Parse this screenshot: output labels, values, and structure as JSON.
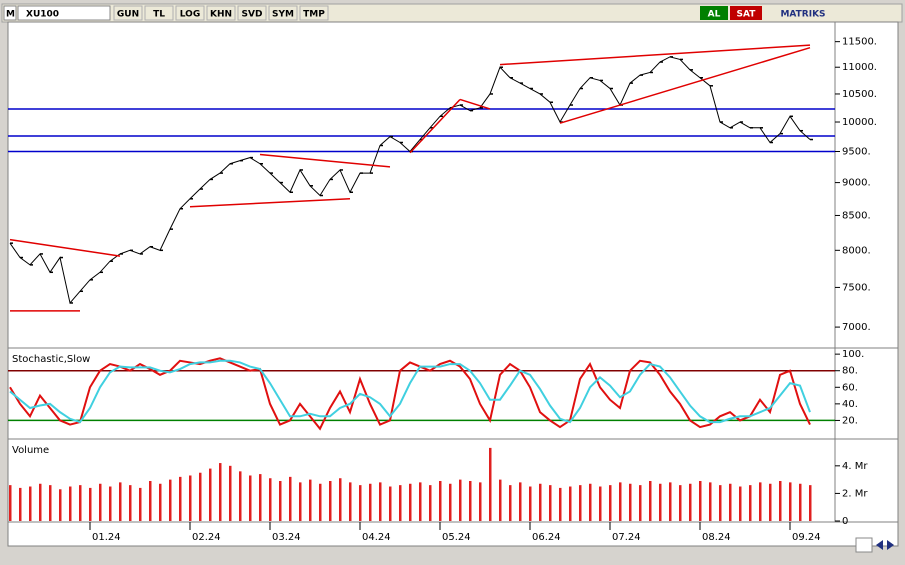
{
  "toolbar": {
    "logo": "M",
    "symbol": "XU100",
    "buttons": [
      "GUN",
      "TL",
      "LOG",
      "KHN",
      "SVD",
      "SYM",
      "TMP"
    ],
    "buy": "AL",
    "sell": "SAT",
    "brand": "MATRIKS"
  },
  "chart_data": [
    {
      "type": "line",
      "log": true,
      "categories": [
        null,
        null,
        null,
        null,
        null,
        null,
        null,
        null,
        "01.24",
        null,
        null,
        null,
        null,
        null,
        null,
        null,
        null,
        null,
        "02.24",
        null,
        null,
        null,
        null,
        null,
        null,
        null,
        "03.24",
        null,
        null,
        null,
        null,
        null,
        null,
        null,
        null,
        "04.24",
        null,
        null,
        null,
        null,
        null,
        null,
        null,
        "05.24",
        null,
        null,
        null,
        null,
        null,
        null,
        null,
        null,
        "06.24",
        null,
        null,
        null,
        null,
        null,
        null,
        null,
        "07.24",
        null,
        null,
        null,
        null,
        null,
        null,
        null,
        null,
        "08.24",
        null,
        null,
        null,
        null,
        null,
        null,
        null,
        null,
        "09.24",
        null,
        null
      ],
      "series": [
        {
          "color": "#000000",
          "values": [
            8100,
            7900,
            7800,
            7950,
            7700,
            7900,
            7300,
            7450,
            7600,
            7700,
            7850,
            7950,
            8000,
            7950,
            8050,
            8000,
            8300,
            8600,
            8750,
            8900,
            9050,
            9150,
            9300,
            9350,
            9400,
            9300,
            9150,
            9000,
            8850,
            9200,
            8950,
            8800,
            9050,
            9200,
            8850,
            9150,
            9150,
            9600,
            9750,
            9650,
            9500,
            9700,
            9900,
            10100,
            10250,
            10300,
            10200,
            10250,
            10500,
            11000,
            10800,
            10700,
            10600,
            10500,
            10350,
            10000,
            10300,
            10600,
            10800,
            10750,
            10600,
            10300,
            10700,
            10850,
            10900,
            11100,
            11200,
            11150,
            10950,
            10800,
            10650,
            10000,
            9900,
            10000,
            9900,
            9900,
            9650,
            9800,
            10100,
            9850,
            9700
          ]
        }
      ],
      "ylim": [
        6750,
        11900
      ],
      "yticks": [
        {
          "value": 7000,
          "label": "7000."
        },
        {
          "value": 7500,
          "label": "7500."
        },
        {
          "value": 8000,
          "label": "8000."
        },
        {
          "value": 8500,
          "label": "8500."
        },
        {
          "value": 9000,
          "label": "9000."
        },
        {
          "value": 9500,
          "label": "9500."
        },
        {
          "value": 10000,
          "label": "10000."
        },
        {
          "value": 10500,
          "label": "10500."
        },
        {
          "value": 11000,
          "label": "11000."
        },
        {
          "value": 11500,
          "label": "11500."
        }
      ],
      "hlines": [
        {
          "value": 10230,
          "color": "#0000cc"
        },
        {
          "value": 9760,
          "color": "#0000cc"
        },
        {
          "value": 9500,
          "color": "#0000cc"
        }
      ],
      "trendlines": [
        {
          "color": "#e00000",
          "points": [
            [
              0,
              8150
            ],
            [
              11,
              7920
            ]
          ]
        },
        {
          "color": "#e00000",
          "points": [
            [
              0,
              7200
            ],
            [
              7,
              7200
            ]
          ]
        },
        {
          "color": "#e00000",
          "points": [
            [
              25,
              9450
            ],
            [
              38,
              9250
            ]
          ]
        },
        {
          "color": "#e00000",
          "points": [
            [
              18,
              8630
            ],
            [
              34,
              8750
            ]
          ]
        },
        {
          "color": "#e00000",
          "points": [
            [
              40,
              9480
            ],
            [
              45,
              10400
            ]
          ]
        },
        {
          "color": "#e00000",
          "points": [
            [
              45,
              10400
            ],
            [
              48,
              10230
            ]
          ]
        },
        {
          "color": "#e00000",
          "points": [
            [
              49,
              11050
            ],
            [
              80,
              11430
            ]
          ]
        },
        {
          "color": "#e00000",
          "points": [
            [
              55,
              9980
            ],
            [
              80,
              11380
            ]
          ]
        }
      ]
    },
    {
      "type": "line",
      "title": "Stochastic,Slow",
      "series": [
        {
          "color": "#e01010",
          "values": [
            60,
            40,
            25,
            50,
            35,
            20,
            15,
            18,
            60,
            80,
            88,
            85,
            80,
            88,
            82,
            75,
            80,
            92,
            90,
            88,
            92,
            95,
            90,
            85,
            80,
            82,
            40,
            15,
            20,
            40,
            25,
            10,
            35,
            55,
            30,
            70,
            40,
            15,
            20,
            80,
            90,
            85,
            80,
            88,
            92,
            85,
            70,
            40,
            20,
            75,
            88,
            80,
            60,
            30,
            20,
            12,
            20,
            70,
            88,
            60,
            45,
            35,
            80,
            92,
            90,
            75,
            55,
            40,
            20,
            12,
            15,
            25,
            30,
            20,
            25,
            45,
            30,
            75,
            80,
            40,
            15
          ]
        },
        {
          "color": "#40d0e0",
          "values": [
            55,
            45,
            35,
            38,
            40,
            30,
            22,
            18,
            35,
            60,
            78,
            85,
            84,
            84,
            84,
            80,
            78,
            82,
            88,
            90,
            90,
            92,
            92,
            90,
            85,
            82,
            65,
            45,
            25,
            25,
            28,
            25,
            25,
            35,
            40,
            52,
            48,
            40,
            25,
            40,
            65,
            85,
            85,
            85,
            88,
            88,
            80,
            65,
            45,
            45,
            62,
            80,
            75,
            58,
            38,
            22,
            18,
            35,
            60,
            72,
            62,
            48,
            55,
            75,
            88,
            85,
            72,
            55,
            38,
            25,
            18,
            18,
            22,
            25,
            25,
            30,
            35,
            50,
            65,
            62,
            30
          ]
        }
      ],
      "ylim": [
        0,
        105
      ],
      "yticks": [
        {
          "value": 100,
          "label": "100."
        },
        {
          "value": 80,
          "label": "80."
        },
        {
          "value": 60,
          "label": "60."
        },
        {
          "value": 40,
          "label": "40."
        },
        {
          "value": 20,
          "label": "20."
        }
      ],
      "hlines": [
        {
          "value": 80,
          "color": "#800000"
        },
        {
          "value": 20,
          "color": "#008000"
        }
      ]
    },
    {
      "type": "bar",
      "title": "Volume",
      "color": "#e02020",
      "values": [
        2600000,
        2400000,
        2500000,
        2700000,
        2600000,
        2300000,
        2500000,
        2600000,
        2400000,
        2700000,
        2500000,
        2800000,
        2600000,
        2400000,
        2900000,
        2700000,
        3000000,
        3200000,
        3300000,
        3500000,
        3800000,
        4200000,
        4000000,
        3600000,
        3300000,
        3400000,
        3100000,
        2900000,
        3200000,
        2800000,
        3000000,
        2700000,
        2900000,
        3100000,
        2800000,
        2600000,
        2700000,
        2800000,
        2500000,
        2600000,
        2700000,
        2800000,
        2600000,
        2900000,
        2700000,
        3000000,
        2900000,
        2800000,
        5300000,
        3000000,
        2600000,
        2800000,
        2500000,
        2700000,
        2600000,
        2400000,
        2500000,
        2600000,
        2700000,
        2500000,
        2600000,
        2800000,
        2700000,
        2600000,
        2900000,
        2700000,
        2800000,
        2600000,
        2700000,
        2900000,
        2800000,
        2600000,
        2700000,
        2500000,
        2600000,
        2800000,
        2700000,
        2900000,
        2800000,
        2700000,
        2600000
      ],
      "ylim": [
        0,
        5800000
      ],
      "yticks": [
        0,
        {
          "value": 2000000,
          "label": "2. Mr"
        },
        {
          "value": 4000000,
          "label": "4. Mr"
        }
      ]
    }
  ]
}
